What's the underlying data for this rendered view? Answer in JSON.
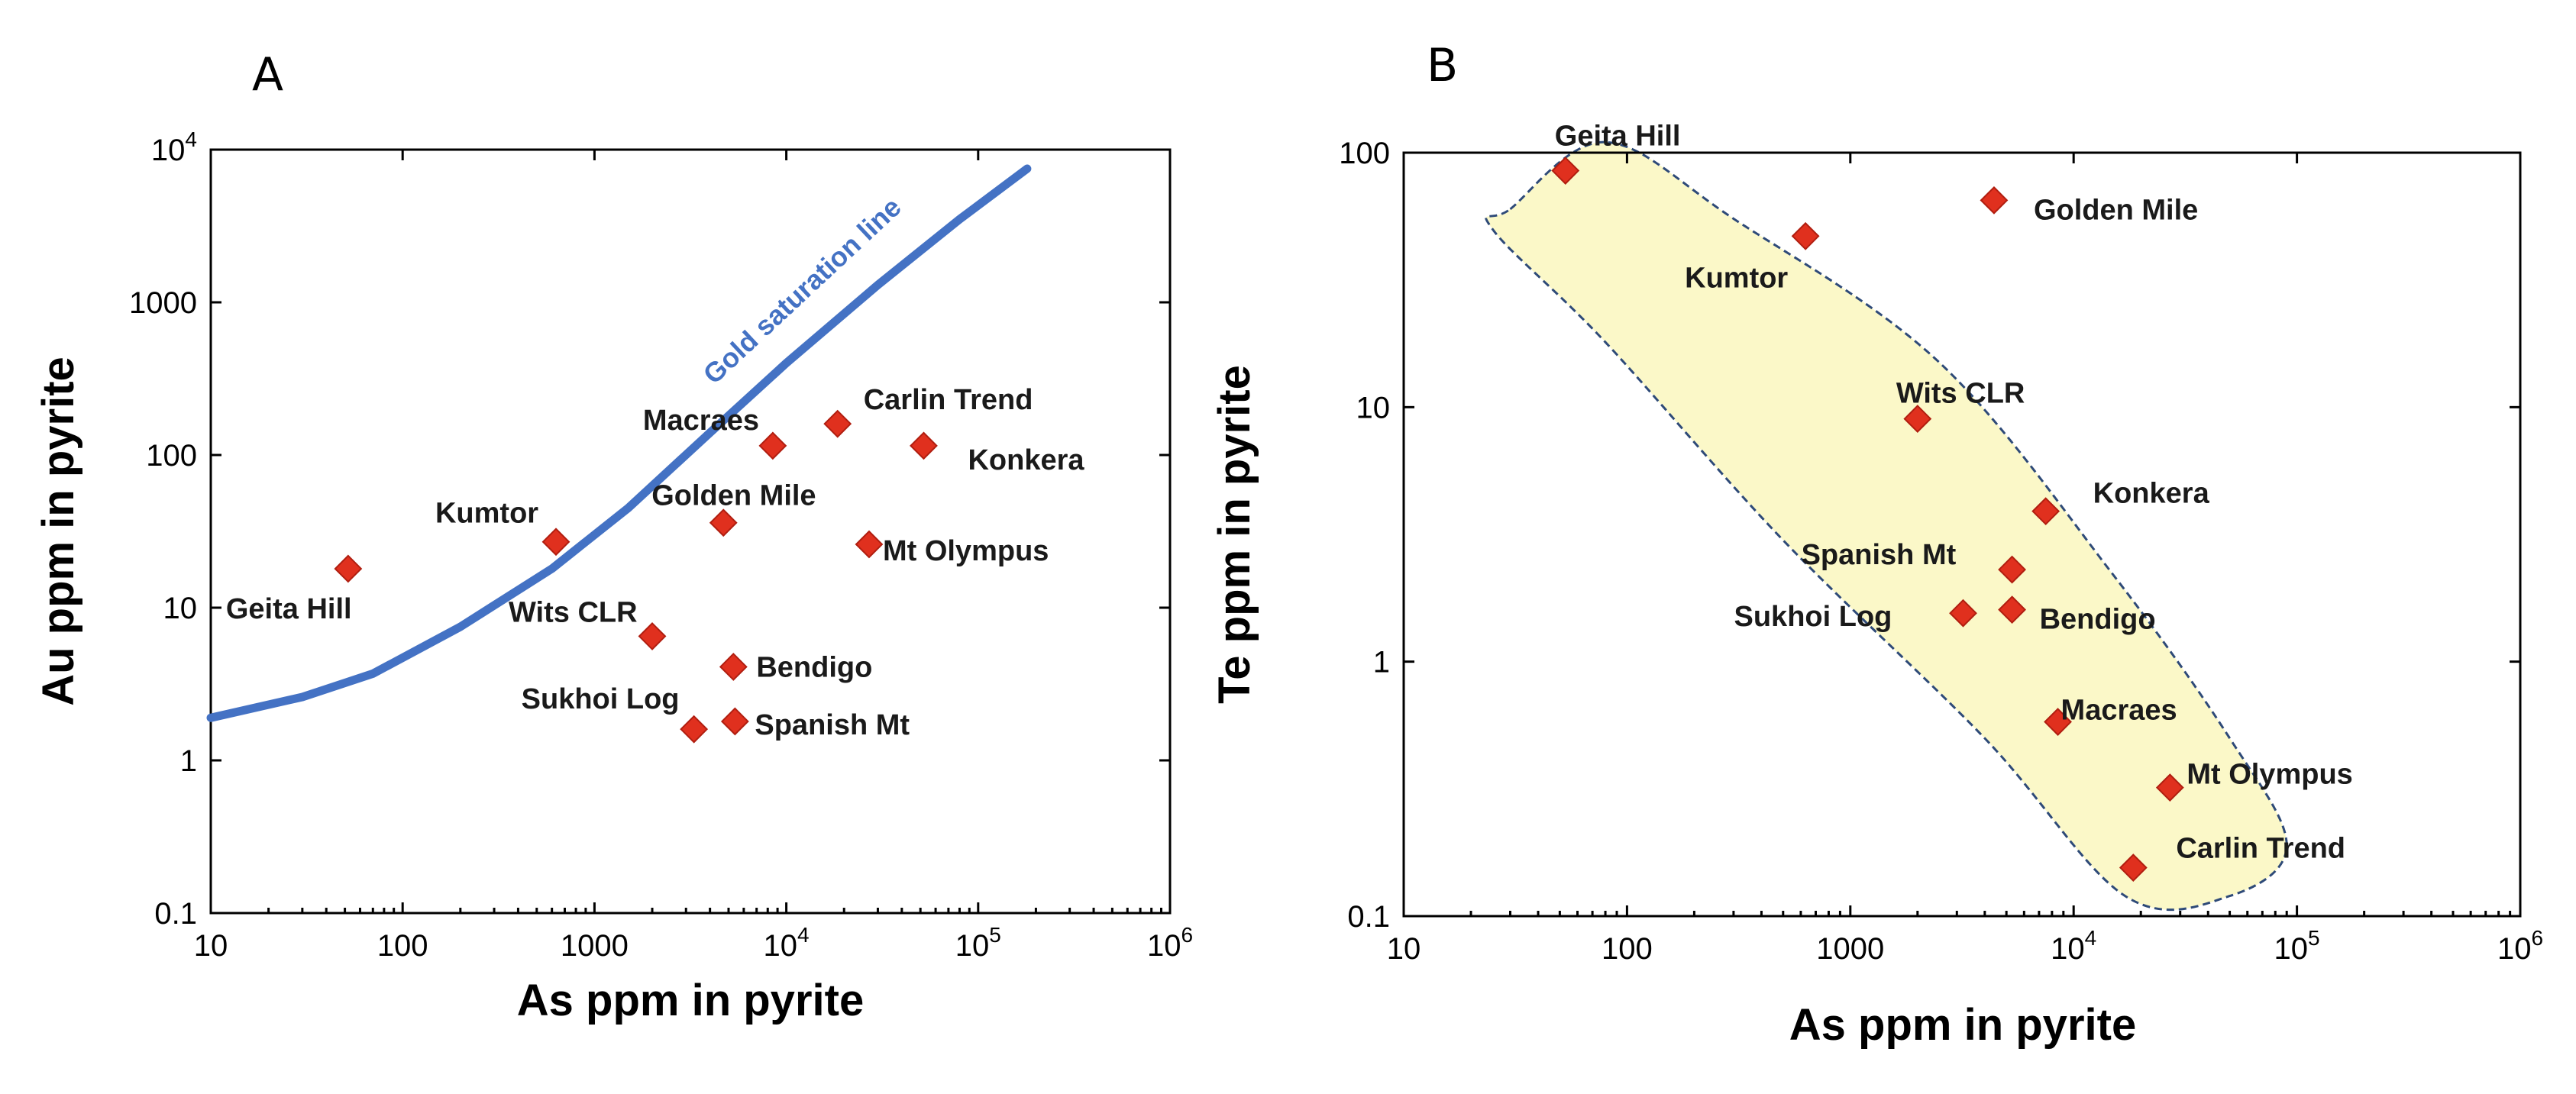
{
  "chart_data": [
    {
      "type": "scatter",
      "panel_label": "A",
      "xlabel": "As ppm in pyrite",
      "ylabel": "Au ppm in pyrite",
      "x_scale": "log",
      "y_scale": "log",
      "xlim": [
        10,
        1000000
      ],
      "ylim": [
        0.1,
        10000
      ],
      "x_ticks": [
        {
          "value": 10,
          "label": "10"
        },
        {
          "value": 100,
          "label": "100"
        },
        {
          "value": 1000,
          "label": "1000"
        },
        {
          "value": 10000,
          "label": "10",
          "exp": "4"
        },
        {
          "value": 100000,
          "label": "10",
          "exp": "5"
        },
        {
          "value": 1000000,
          "label": "10",
          "exp": "6"
        }
      ],
      "y_ticks": [
        {
          "value": 0.1,
          "label": "0.1"
        },
        {
          "value": 1,
          "label": "1"
        },
        {
          "value": 10,
          "label": "10"
        },
        {
          "value": 100,
          "label": "100"
        },
        {
          "value": 1000,
          "label": "1000"
        },
        {
          "value": 10000,
          "label": "10",
          "exp": "4"
        }
      ],
      "marker_color": "#e0301e",
      "points": [
        {
          "name": "Geita Hill",
          "x": 52,
          "y": 18
        },
        {
          "name": "Kumtor",
          "x": 630,
          "y": 27
        },
        {
          "name": "Wits CLR",
          "x": 2000,
          "y": 6.5
        },
        {
          "name": "Golden Mile",
          "x": 4700,
          "y": 36
        },
        {
          "name": "Macraes",
          "x": 8500,
          "y": 115
        },
        {
          "name": "Carlin Trend",
          "x": 18500,
          "y": 160
        },
        {
          "name": "Konkera",
          "x": 52000,
          "y": 115
        },
        {
          "name": "Mt Olympus",
          "x": 27000,
          "y": 26
        },
        {
          "name": "Bendigo",
          "x": 5300,
          "y": 4.1
        },
        {
          "name": "Sukhoi Log",
          "x": 3300,
          "y": 1.6
        },
        {
          "name": "Spanish Mt",
          "x": 5400,
          "y": 1.8
        }
      ],
      "line": {
        "label": "Gold saturation line",
        "color": "#4472c4",
        "points": [
          [
            10,
            1.9
          ],
          [
            30,
            2.6
          ],
          [
            70,
            3.7
          ],
          [
            200,
            7.5
          ],
          [
            600,
            18
          ],
          [
            1500,
            45
          ],
          [
            4000,
            140
          ],
          [
            10000,
            400
          ],
          [
            30000,
            1300
          ],
          [
            80000,
            3500
          ],
          [
            180000,
            7500
          ]
        ]
      }
    },
    {
      "type": "scatter",
      "panel_label": "B",
      "xlabel": "As ppm in pyrite",
      "ylabel": "Te ppm in pyrite",
      "x_scale": "log",
      "y_scale": "log",
      "xlim": [
        10,
        1000000
      ],
      "ylim": [
        0.1,
        100
      ],
      "x_ticks": [
        {
          "value": 10,
          "label": "10"
        },
        {
          "value": 100,
          "label": "100"
        },
        {
          "value": 1000,
          "label": "1000"
        },
        {
          "value": 10000,
          "label": "10",
          "exp": "4"
        },
        {
          "value": 100000,
          "label": "10",
          "exp": "5"
        },
        {
          "value": 1000000,
          "label": "10",
          "exp": "6"
        }
      ],
      "y_ticks": [
        {
          "value": 0.1,
          "label": "0.1"
        },
        {
          "value": 1,
          "label": "1"
        },
        {
          "value": 10,
          "label": "10"
        },
        {
          "value": 100,
          "label": "100"
        }
      ],
      "marker_color": "#e0301e",
      "points": [
        {
          "name": "Geita Hill",
          "x": 53,
          "y": 85
        },
        {
          "name": "Kumtor",
          "x": 630,
          "y": 47
        },
        {
          "name": "Golden Mile",
          "x": 4400,
          "y": 65
        },
        {
          "name": "Wits CLR",
          "x": 2000,
          "y": 9
        },
        {
          "name": "Konkera",
          "x": 7500,
          "y": 3.9
        },
        {
          "name": "Spanish Mt",
          "x": 5300,
          "y": 2.3
        },
        {
          "name": "Sukhoi Log",
          "x": 3200,
          "y": 1.55
        },
        {
          "name": "Bendigo",
          "x": 5300,
          "y": 1.6
        },
        {
          "name": "Macraes",
          "x": 8500,
          "y": 0.58
        },
        {
          "name": "Mt Olympus",
          "x": 27000,
          "y": 0.32
        },
        {
          "name": "Carlin Trend",
          "x": 18500,
          "y": 0.155
        }
      ],
      "field_color": "#fbf8c8",
      "field_outline_color": "#2e4a78"
    }
  ]
}
